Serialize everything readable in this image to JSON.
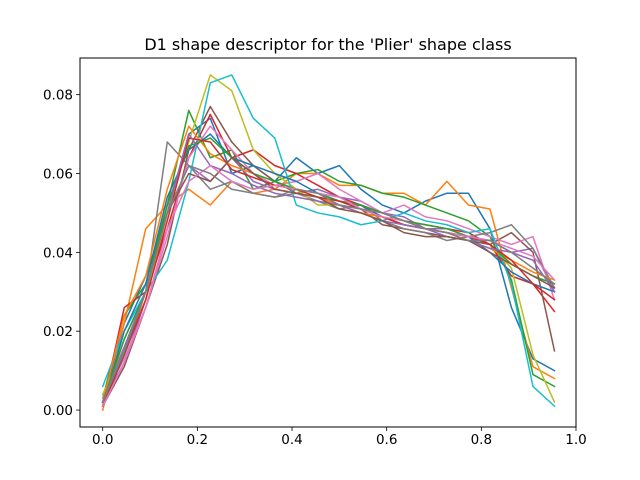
{
  "chart_data": {
    "type": "line",
    "title": "D1 shape descriptor for the 'Plier' shape class",
    "xlabel": "",
    "ylabel": "",
    "xlim": [
      -0.048,
      1.0
    ],
    "ylim": [
      -0.0043,
      0.0893
    ],
    "grid": false,
    "legend": "none",
    "xticks": [
      {
        "value": 0.0,
        "label": "0.0"
      },
      {
        "value": 0.2,
        "label": "0.2"
      },
      {
        "value": 0.4,
        "label": "0.4"
      },
      {
        "value": 0.6,
        "label": "0.6"
      },
      {
        "value": 0.8,
        "label": "0.8"
      },
      {
        "value": 1.0,
        "label": "1.0"
      }
    ],
    "yticks": [
      {
        "value": 0.0,
        "label": "0.00"
      },
      {
        "value": 0.02,
        "label": "0.02"
      },
      {
        "value": 0.04,
        "label": "0.04"
      },
      {
        "value": 0.06,
        "label": "0.06"
      },
      {
        "value": 0.08,
        "label": "0.08"
      }
    ],
    "x": [
      0.0,
      0.0455,
      0.0909,
      0.1364,
      0.1818,
      0.2273,
      0.2727,
      0.3182,
      0.3636,
      0.4091,
      0.4545,
      0.5,
      0.5455,
      0.5909,
      0.6364,
      0.6818,
      0.7273,
      0.7727,
      0.8182,
      0.8636,
      0.9091,
      0.9545
    ],
    "series": [
      {
        "color": "#1f77b4",
        "values": [
          0.002,
          0.022,
          0.034,
          0.05,
          0.07,
          0.074,
          0.06,
          0.062,
          0.058,
          0.064,
          0.06,
          0.062,
          0.056,
          0.052,
          0.05,
          0.053,
          0.055,
          0.055,
          0.046,
          0.026,
          0.013,
          0.01
        ]
      },
      {
        "color": "#ff7f0e",
        "values": [
          0.0,
          0.022,
          0.046,
          0.052,
          0.056,
          0.052,
          0.058,
          0.055,
          0.056,
          0.06,
          0.06,
          0.057,
          0.057,
          0.055,
          0.055,
          0.052,
          0.058,
          0.052,
          0.051,
          0.031,
          0.011,
          0.008
        ]
      },
      {
        "color": "#2ca02c",
        "values": [
          0.003,
          0.024,
          0.032,
          0.052,
          0.076,
          0.064,
          0.066,
          0.056,
          0.058,
          0.06,
          0.061,
          0.058,
          0.057,
          0.055,
          0.054,
          0.052,
          0.05,
          0.048,
          0.044,
          0.033,
          0.009,
          0.006
        ]
      },
      {
        "color": "#d62728",
        "values": [
          0.001,
          0.026,
          0.03,
          0.046,
          0.064,
          0.075,
          0.064,
          0.066,
          0.062,
          0.06,
          0.057,
          0.054,
          0.052,
          0.05,
          0.048,
          0.047,
          0.046,
          0.045,
          0.042,
          0.034,
          0.032,
          0.025
        ]
      },
      {
        "color": "#9467bd",
        "values": [
          0.002,
          0.012,
          0.028,
          0.05,
          0.062,
          0.058,
          0.064,
          0.058,
          0.056,
          0.055,
          0.056,
          0.054,
          0.053,
          0.05,
          0.049,
          0.046,
          0.046,
          0.044,
          0.043,
          0.04,
          0.041,
          0.03
        ]
      },
      {
        "color": "#8c564b",
        "values": [
          0.001,
          0.011,
          0.026,
          0.042,
          0.066,
          0.077,
          0.068,
          0.062,
          0.058,
          0.055,
          0.054,
          0.052,
          0.051,
          0.047,
          0.046,
          0.045,
          0.044,
          0.043,
          0.042,
          0.045,
          0.04,
          0.015
        ]
      },
      {
        "color": "#e377c2",
        "values": [
          0.003,
          0.013,
          0.026,
          0.044,
          0.064,
          0.072,
          0.066,
          0.06,
          0.057,
          0.058,
          0.06,
          0.056,
          0.053,
          0.05,
          0.052,
          0.049,
          0.048,
          0.046,
          0.044,
          0.042,
          0.044,
          0.028
        ]
      },
      {
        "color": "#7f7f7f",
        "values": [
          0.002,
          0.018,
          0.03,
          0.068,
          0.062,
          0.056,
          0.058,
          0.055,
          0.054,
          0.055,
          0.053,
          0.051,
          0.052,
          0.048,
          0.046,
          0.045,
          0.043,
          0.044,
          0.045,
          0.047,
          0.041,
          0.031
        ]
      },
      {
        "color": "#bcbd22",
        "values": [
          0.004,
          0.016,
          0.028,
          0.05,
          0.068,
          0.085,
          0.081,
          0.066,
          0.06,
          0.056,
          0.052,
          0.052,
          0.05,
          0.049,
          0.048,
          0.046,
          0.045,
          0.044,
          0.042,
          0.036,
          0.014,
          0.002
        ]
      },
      {
        "color": "#17becf",
        "values": [
          0.006,
          0.02,
          0.03,
          0.038,
          0.058,
          0.083,
          0.085,
          0.074,
          0.069,
          0.052,
          0.05,
          0.049,
          0.047,
          0.048,
          0.05,
          0.048,
          0.047,
          0.045,
          0.046,
          0.032,
          0.006,
          0.001
        ]
      },
      {
        "color": "#1f77b4",
        "values": [
          0.001,
          0.02,
          0.032,
          0.054,
          0.066,
          0.07,
          0.064,
          0.062,
          0.06,
          0.058,
          0.055,
          0.053,
          0.052,
          0.049,
          0.047,
          0.046,
          0.045,
          0.044,
          0.04,
          0.035,
          0.032,
          0.03
        ]
      },
      {
        "color": "#ff7f0e",
        "values": [
          0.002,
          0.024,
          0.034,
          0.056,
          0.072,
          0.065,
          0.062,
          0.06,
          0.056,
          0.055,
          0.054,
          0.052,
          0.05,
          0.049,
          0.047,
          0.046,
          0.045,
          0.043,
          0.041,
          0.038,
          0.035,
          0.033
        ]
      },
      {
        "color": "#2ca02c",
        "values": [
          0.002,
          0.018,
          0.03,
          0.052,
          0.067,
          0.069,
          0.064,
          0.06,
          0.058,
          0.056,
          0.055,
          0.053,
          0.052,
          0.05,
          0.048,
          0.047,
          0.046,
          0.044,
          0.042,
          0.037,
          0.034,
          0.032
        ]
      },
      {
        "color": "#d62728",
        "values": [
          0.001,
          0.014,
          0.028,
          0.048,
          0.069,
          0.068,
          0.061,
          0.059,
          0.057,
          0.056,
          0.054,
          0.053,
          0.051,
          0.049,
          0.047,
          0.046,
          0.045,
          0.044,
          0.042,
          0.038,
          0.032,
          0.028
        ]
      },
      {
        "color": "#9467bd",
        "values": [
          0.002,
          0.016,
          0.03,
          0.05,
          0.07,
          0.062,
          0.06,
          0.057,
          0.055,
          0.054,
          0.053,
          0.052,
          0.05,
          0.048,
          0.047,
          0.046,
          0.044,
          0.043,
          0.041,
          0.04,
          0.038,
          0.03
        ]
      },
      {
        "color": "#8c564b",
        "values": [
          0.002,
          0.014,
          0.03,
          0.05,
          0.06,
          0.058,
          0.064,
          0.06,
          0.056,
          0.055,
          0.054,
          0.051,
          0.05,
          0.048,
          0.045,
          0.044,
          0.044,
          0.043,
          0.04,
          0.037,
          0.034,
          0.031
        ]
      },
      {
        "color": "#e377c2",
        "values": [
          0.001,
          0.012,
          0.026,
          0.046,
          0.058,
          0.062,
          0.058,
          0.056,
          0.057,
          0.056,
          0.055,
          0.054,
          0.051,
          0.049,
          0.048,
          0.046,
          0.045,
          0.044,
          0.043,
          0.041,
          0.039,
          0.033
        ]
      },
      {
        "color": "#7f7f7f",
        "values": [
          0.002,
          0.015,
          0.03,
          0.05,
          0.062,
          0.06,
          0.056,
          0.055,
          0.054,
          0.056,
          0.055,
          0.052,
          0.051,
          0.05,
          0.048,
          0.046,
          0.045,
          0.043,
          0.043,
          0.04,
          0.036,
          0.032
        ]
      }
    ]
  }
}
